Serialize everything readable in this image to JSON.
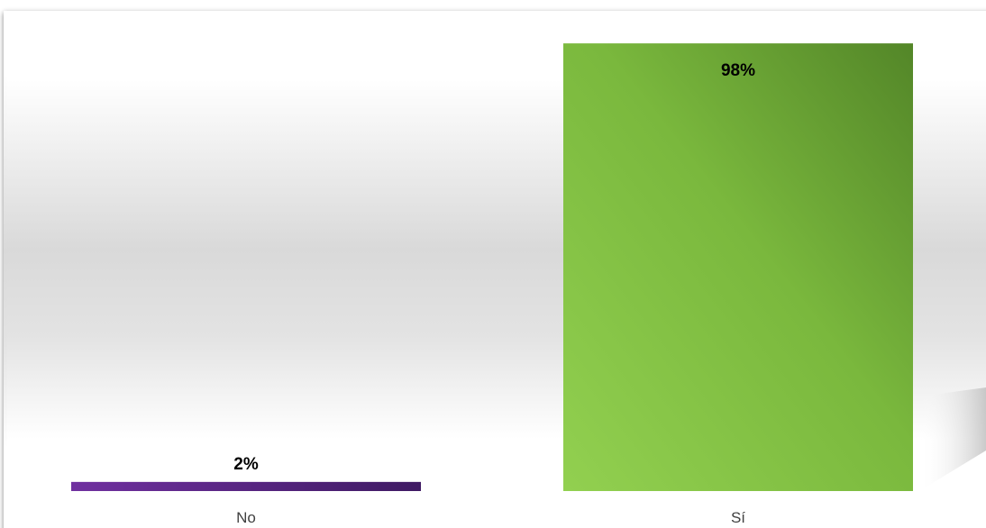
{
  "chart_data": {
    "type": "bar",
    "categories": [
      "No",
      "Sí"
    ],
    "values": [
      2,
      98
    ],
    "data_labels": [
      "2%",
      "98%"
    ],
    "ylim": [
      0,
      100
    ],
    "grid": false,
    "legend": "none",
    "title": "",
    "xlabel": "",
    "ylabel": "",
    "series": [
      {
        "values": [
          2,
          98
        ],
        "colors": [
          "#6a2ca8",
          "#7fbf3b"
        ]
      }
    ]
  },
  "colors": {
    "no_bar_start": "#7030a0",
    "no_bar_end": "#3f1a63",
    "si_bar_light": "#92d050",
    "si_bar_dark": "#538628",
    "background_mid": "#d9d9d9",
    "background_edge": "#ffffff"
  }
}
